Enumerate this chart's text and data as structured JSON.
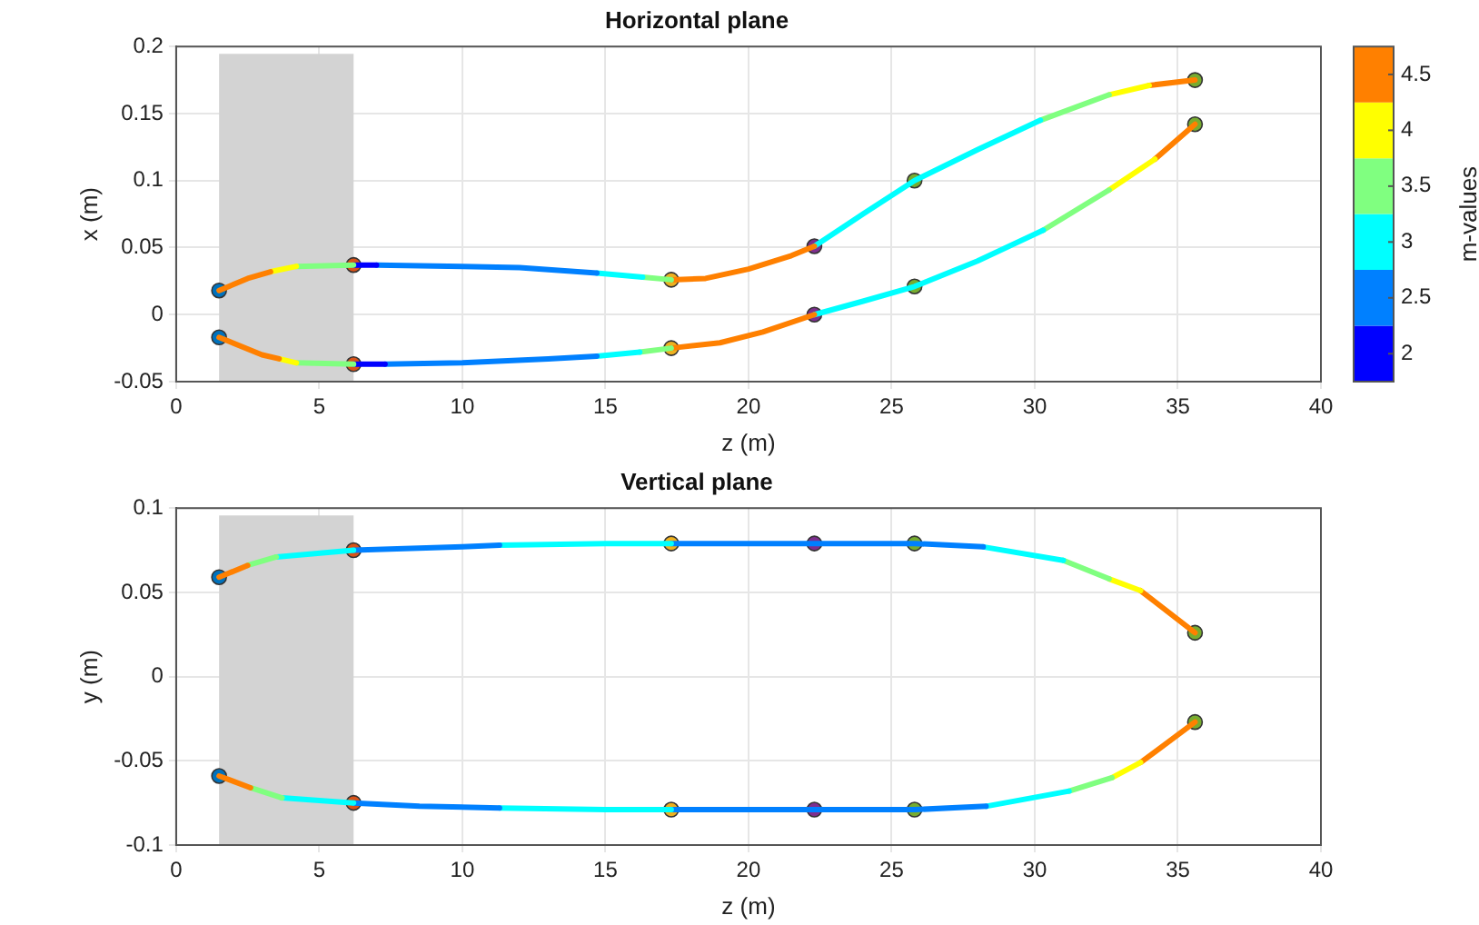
{
  "chart_data": [
    {
      "type": "line",
      "title": "Horizontal plane",
      "xlabel": "z (m)",
      "ylabel": "x (m)",
      "clabel": "m-values",
      "xlim": [
        0,
        40
      ],
      "xticks": [
        0,
        5,
        10,
        15,
        20,
        25,
        30,
        35,
        40
      ],
      "ylim": [
        -0.05,
        0.2
      ],
      "yticks": [
        -0.05,
        0,
        0.05,
        0.1,
        0.15,
        0.2
      ],
      "clim": [
        1.75,
        4.75
      ],
      "cticks": [
        2,
        2.5,
        3,
        3.5,
        4,
        4.5
      ],
      "grid": true,
      "line_style": "solid",
      "bands": [
        {
          "axis": "x",
          "from": 1.5,
          "to": 6.2,
          "color": "#d3d3d3"
        }
      ],
      "series": [
        {
          "type": "line",
          "color": "#ff8000",
          "x": [
            1.5,
            2.5,
            3.3
          ],
          "values": [
            0.018,
            0.027,
            0.032
          ]
        },
        {
          "type": "line",
          "color": "#ffff00",
          "x": [
            3.3,
            4.2
          ],
          "values": [
            0.032,
            0.036
          ]
        },
        {
          "type": "line",
          "color": "#80ff80",
          "x": [
            4.2,
            6.2
          ],
          "values": [
            0.036,
            0.037
          ]
        },
        {
          "type": "line",
          "color": "#0000ff",
          "x": [
            6.2,
            7
          ],
          "values": [
            0.037,
            0.037
          ]
        },
        {
          "type": "line",
          "color": "#0080ff",
          "x": [
            7,
            10,
            12,
            14.7
          ],
          "values": [
            0.037,
            0.036,
            0.035,
            0.031
          ]
        },
        {
          "type": "line",
          "color": "#00ffff",
          "x": [
            14.7,
            16.3
          ],
          "values": [
            0.031,
            0.028
          ]
        },
        {
          "type": "line",
          "color": "#80ff80",
          "x": [
            16.3,
            17.3
          ],
          "values": [
            0.028,
            0.026
          ]
        },
        {
          "type": "line",
          "color": "#ff8000",
          "x": [
            17.3,
            18.5,
            20,
            21.5,
            22.3
          ],
          "values": [
            0.026,
            0.027,
            0.034,
            0.044,
            0.051
          ]
        },
        {
          "type": "line",
          "color": "#00ffff",
          "x": [
            22.3,
            24,
            25.8,
            28,
            30.2
          ],
          "values": [
            0.051,
            0.075,
            0.1,
            0.123,
            0.145
          ]
        },
        {
          "type": "line",
          "color": "#80ff80",
          "x": [
            30.2,
            32.6
          ],
          "values": [
            0.145,
            0.164
          ]
        },
        {
          "type": "line",
          "color": "#ffff00",
          "x": [
            32.6,
            34
          ],
          "values": [
            0.164,
            0.171
          ]
        },
        {
          "type": "line",
          "color": "#ff8000",
          "x": [
            34,
            35.6
          ],
          "values": [
            0.171,
            0.175
          ]
        },
        {
          "type": "line",
          "color": "#ff8000",
          "x": [
            1.5,
            3,
            3.6
          ],
          "values": [
            -0.017,
            -0.03,
            -0.033
          ]
        },
        {
          "type": "line",
          "color": "#ffff00",
          "x": [
            3.6,
            4.2
          ],
          "values": [
            -0.033,
            -0.036
          ]
        },
        {
          "type": "line",
          "color": "#80ff80",
          "x": [
            4.2,
            6.2
          ],
          "values": [
            -0.036,
            -0.037
          ]
        },
        {
          "type": "line",
          "color": "#0000ff",
          "x": [
            6.2,
            7.3
          ],
          "values": [
            -0.037,
            -0.037
          ]
        },
        {
          "type": "line",
          "color": "#0080ff",
          "x": [
            7.3,
            10,
            13,
            14.7
          ],
          "values": [
            -0.037,
            -0.036,
            -0.033,
            -0.031
          ]
        },
        {
          "type": "line",
          "color": "#00ffff",
          "x": [
            14.7,
            16.2
          ],
          "values": [
            -0.031,
            -0.028
          ]
        },
        {
          "type": "line",
          "color": "#80ff80",
          "x": [
            16.2,
            17.3
          ],
          "values": [
            -0.028,
            -0.025
          ]
        },
        {
          "type": "line",
          "color": "#ff8000",
          "x": [
            17.3,
            19,
            20.5,
            22.3
          ],
          "values": [
            -0.025,
            -0.021,
            -0.013,
            0
          ]
        },
        {
          "type": "line",
          "color": "#00ffff",
          "x": [
            22.3,
            24,
            25.8,
            28,
            30.3
          ],
          "values": [
            0,
            0.01,
            0.021,
            0.04,
            0.063
          ]
        },
        {
          "type": "line",
          "color": "#80ff80",
          "x": [
            30.3,
            32.6
          ],
          "values": [
            0.063,
            0.093
          ]
        },
        {
          "type": "line",
          "color": "#ffff00",
          "x": [
            32.6,
            34.2
          ],
          "values": [
            0.093,
            0.116
          ]
        },
        {
          "type": "line",
          "color": "#ff8000",
          "x": [
            34.2,
            35.6
          ],
          "values": [
            0.116,
            0.142
          ]
        },
        {
          "type": "scatter",
          "marker": "circle",
          "x": [
            1.5,
            1.5,
            6.2,
            6.2,
            17.3,
            17.3,
            22.3,
            22.3,
            25.8,
            25.8,
            35.6,
            35.6
          ],
          "values": [
            0.018,
            -0.017,
            0.037,
            -0.037,
            0.026,
            -0.025,
            0.051,
            0,
            0.1,
            0.021,
            0.175,
            0.142
          ],
          "colors": [
            "#0072bd",
            "#0072bd",
            "#d95319",
            "#d95319",
            "#edb120",
            "#edb120",
            "#7e2f8e",
            "#7e2f8e",
            "#77ac30",
            "#77ac30",
            "#77ac30",
            "#77ac30"
          ]
        }
      ]
    },
    {
      "type": "line",
      "title": "Vertical plane",
      "xlabel": "z (m)",
      "ylabel": "y (m)",
      "xlim": [
        0,
        40
      ],
      "xticks": [
        0,
        5,
        10,
        15,
        20,
        25,
        30,
        35,
        40
      ],
      "ylim": [
        -0.1,
        0.1
      ],
      "yticks": [
        -0.1,
        -0.05,
        0,
        0.05,
        0.1
      ],
      "grid": true,
      "line_style": "solid",
      "bands": [
        {
          "axis": "x",
          "from": 1.5,
          "to": 6.2,
          "color": "#d3d3d3"
        }
      ],
      "series": [
        {
          "type": "line",
          "color": "#ff8000",
          "x": [
            1.5,
            2.5
          ],
          "values": [
            0.059,
            0.066
          ]
        },
        {
          "type": "line",
          "color": "#80ff80",
          "x": [
            2.5,
            3.5
          ],
          "values": [
            0.066,
            0.071
          ]
        },
        {
          "type": "line",
          "color": "#00ffff",
          "x": [
            3.5,
            6.2
          ],
          "values": [
            0.071,
            0.075
          ]
        },
        {
          "type": "line",
          "color": "#0080ff",
          "x": [
            6.2,
            10,
            11.3
          ],
          "values": [
            0.075,
            0.077,
            0.078
          ]
        },
        {
          "type": "line",
          "color": "#00ffff",
          "x": [
            11.3,
            15,
            17.3
          ],
          "values": [
            0.078,
            0.079,
            0.079
          ]
        },
        {
          "type": "line",
          "color": "#0080ff",
          "x": [
            17.3,
            22.3,
            25.8,
            28.2
          ],
          "values": [
            0.079,
            0.079,
            0.079,
            0.077
          ]
        },
        {
          "type": "line",
          "color": "#00ffff",
          "x": [
            28.2,
            31
          ],
          "values": [
            0.077,
            0.069
          ]
        },
        {
          "type": "line",
          "color": "#80ff80",
          "x": [
            31,
            32.6
          ],
          "values": [
            0.069,
            0.058
          ]
        },
        {
          "type": "line",
          "color": "#ffff00",
          "x": [
            32.6,
            33.7
          ],
          "values": [
            0.058,
            0.051
          ]
        },
        {
          "type": "line",
          "color": "#ff8000",
          "x": [
            33.7,
            35.6
          ],
          "values": [
            0.051,
            0.026
          ]
        },
        {
          "type": "line",
          "color": "#ff8000",
          "x": [
            1.5,
            2.6
          ],
          "values": [
            -0.059,
            -0.066
          ]
        },
        {
          "type": "line",
          "color": "#80ff80",
          "x": [
            2.6,
            3.7
          ],
          "values": [
            -0.066,
            -0.072
          ]
        },
        {
          "type": "line",
          "color": "#00ffff",
          "x": [
            3.7,
            6.2
          ],
          "values": [
            -0.072,
            -0.075
          ]
        },
        {
          "type": "line",
          "color": "#0080ff",
          "x": [
            6.2,
            8.5,
            11.3
          ],
          "values": [
            -0.075,
            -0.077,
            -0.078
          ]
        },
        {
          "type": "line",
          "color": "#00ffff",
          "x": [
            11.3,
            15,
            17.3
          ],
          "values": [
            -0.078,
            -0.079,
            -0.079
          ]
        },
        {
          "type": "line",
          "color": "#0080ff",
          "x": [
            17.3,
            22.3,
            25.8,
            28.3
          ],
          "values": [
            -0.079,
            -0.079,
            -0.079,
            -0.077
          ]
        },
        {
          "type": "line",
          "color": "#00ffff",
          "x": [
            28.3,
            31.2
          ],
          "values": [
            -0.077,
            -0.068
          ]
        },
        {
          "type": "line",
          "color": "#80ff80",
          "x": [
            31.2,
            32.7
          ],
          "values": [
            -0.068,
            -0.06
          ]
        },
        {
          "type": "line",
          "color": "#ffff00",
          "x": [
            32.7,
            33.7
          ],
          "values": [
            -0.06,
            -0.051
          ]
        },
        {
          "type": "line",
          "color": "#ff8000",
          "x": [
            33.7,
            35.6
          ],
          "values": [
            -0.051,
            -0.027
          ]
        },
        {
          "type": "scatter",
          "marker": "circle",
          "x": [
            1.5,
            1.5,
            6.2,
            6.2,
            17.3,
            17.3,
            22.3,
            22.3,
            25.8,
            25.8,
            35.6,
            35.6
          ],
          "values": [
            0.059,
            -0.059,
            0.075,
            -0.075,
            0.079,
            -0.079,
            0.079,
            -0.079,
            0.079,
            -0.079,
            0.026,
            -0.027
          ],
          "colors": [
            "#0072bd",
            "#0072bd",
            "#d95319",
            "#d95319",
            "#edb120",
            "#edb120",
            "#7e2f8e",
            "#7e2f8e",
            "#77ac30",
            "#77ac30",
            "#77ac30",
            "#77ac30"
          ]
        }
      ]
    }
  ]
}
